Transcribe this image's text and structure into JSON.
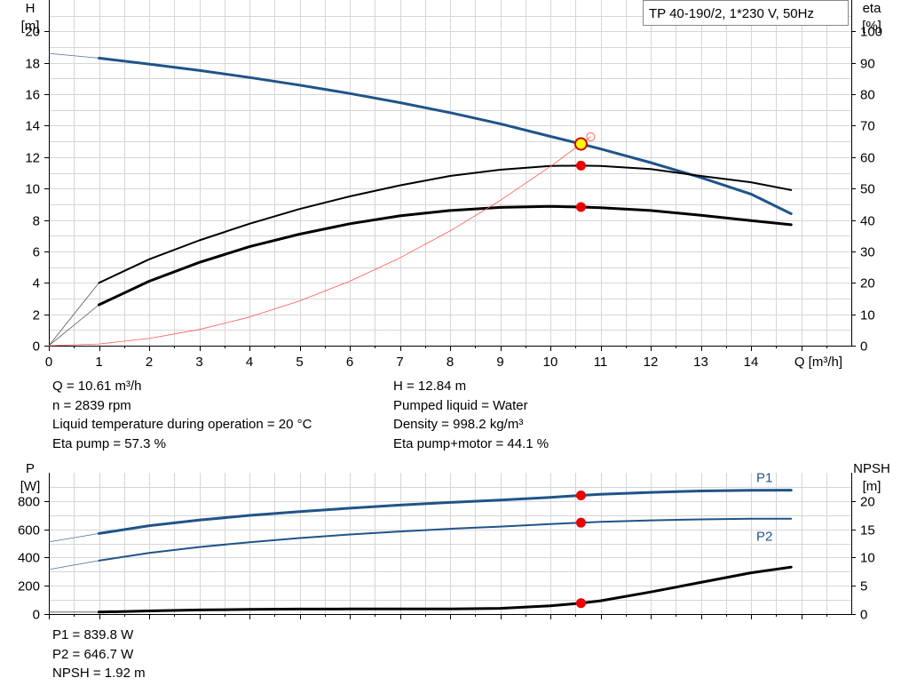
{
  "chart_data": [
    {
      "type": "line",
      "title": "TP 40-190/2, 1*230 V, 50Hz",
      "xlabel": "Q [m³/h]",
      "ylabel_left": [
        "H",
        "[m]"
      ],
      "ylabel_right": [
        "eta",
        "[%]"
      ],
      "xlim": [
        0,
        16
      ],
      "ylim_left": [
        0,
        22
      ],
      "ylim_right": [
        0,
        110
      ],
      "xticks": [
        "0",
        "1",
        "2",
        "3",
        "4",
        "5",
        "6",
        "7",
        "8",
        "9",
        "10",
        "11",
        "12",
        "13",
        "14"
      ],
      "yticks_left": [
        "0",
        "2",
        "4",
        "6",
        "8",
        "10",
        "12",
        "14",
        "16",
        "18",
        "20"
      ],
      "yticks_right": [
        "0",
        "10",
        "20",
        "30",
        "40",
        "50",
        "60",
        "70",
        "80",
        "90",
        "100"
      ],
      "grid": true,
      "series": [
        {
          "name": "",
          "axis": "left",
          "color": "#1f5489",
          "x": [
            1,
            2,
            3,
            4,
            5,
            6,
            7,
            8,
            9,
            10,
            10.61,
            11,
            12,
            13,
            14,
            14.8
          ],
          "y": [
            18.3,
            17.92,
            17.52,
            17.07,
            16.58,
            16.05,
            15.47,
            14.83,
            14.12,
            13.32,
            12.84,
            12.52,
            11.65,
            10.7,
            9.65,
            8.4
          ],
          "ext_x": [
            0,
            1
          ],
          "ext_y": [
            18.6,
            18.3
          ]
        },
        {
          "name": "",
          "axis": "right",
          "color": "#000000",
          "x": [
            1,
            2,
            3,
            4,
            5,
            6,
            7,
            8,
            9,
            10,
            10.61,
            11,
            12,
            13,
            14,
            14.8
          ],
          "y": [
            13,
            20.5,
            26.5,
            31.5,
            35.5,
            38.8,
            41.3,
            43,
            44,
            44.3,
            44.1,
            43.9,
            43,
            41.5,
            39.8,
            38.5
          ],
          "ext_x": [
            0,
            1
          ],
          "ext_y": [
            0,
            13
          ]
        },
        {
          "name": "",
          "axis": "right",
          "color": "#000000",
          "x": [
            1,
            2,
            3,
            4,
            5,
            6,
            7,
            8,
            9,
            10,
            10.61,
            11,
            12,
            13,
            14,
            14.8
          ],
          "y": [
            20,
            27.5,
            33.5,
            38.8,
            43.5,
            47.5,
            51,
            54,
            56,
            57.2,
            57.3,
            57.2,
            56.2,
            54,
            52,
            49.5
          ],
          "ext_x": [
            0,
            1
          ],
          "ext_y": [
            0,
            20
          ]
        },
        {
          "name": "",
          "axis": "left",
          "color": "#ff5555",
          "x": [
            0,
            1,
            2,
            3,
            4,
            5,
            6,
            7,
            8,
            9,
            10,
            10.61,
            10.8
          ],
          "y": [
            0,
            0.11,
            0.46,
            1.03,
            1.82,
            2.85,
            4.1,
            5.59,
            7.3,
            9.24,
            11.41,
            12.84,
            13.3
          ]
        }
      ],
      "points": [
        {
          "x": 10.61,
          "y": 12.84,
          "axis": "left",
          "color": "#ffff00",
          "stroke": "#cc0000",
          "marker": "duty"
        },
        {
          "x": 10.61,
          "y": 57.3,
          "axis": "right",
          "color": "#ee0000"
        },
        {
          "x": 10.61,
          "y": 44.1,
          "axis": "right",
          "color": "#ee0000"
        }
      ]
    },
    {
      "type": "line",
      "title": "",
      "xlabel": "",
      "ylabel_left": [
        "P",
        "[W]"
      ],
      "ylabel_right": [
        "NPSH",
        "[m]"
      ],
      "xlim": [
        0,
        16
      ],
      "ylim_left": [
        0,
        1000
      ],
      "ylim_right": [
        0,
        25
      ],
      "yticks_left": [
        "0",
        "200",
        "400",
        "600",
        "800"
      ],
      "yticks_right": [
        "0",
        "5",
        "10",
        "15",
        "20"
      ],
      "grid": true,
      "series": [
        {
          "name": "P1",
          "axis": "left",
          "color": "#1f5489",
          "x": [
            1,
            2,
            3,
            4,
            5,
            6,
            7,
            8,
            9,
            10,
            10.61,
            11,
            12,
            13,
            14,
            14.8
          ],
          "y": [
            570,
            625,
            665,
            698,
            725,
            749,
            771,
            790,
            807,
            826,
            839.8,
            847,
            861,
            871,
            876,
            877
          ],
          "ext_x": [
            0,
            1
          ],
          "ext_y": [
            510,
            570
          ]
        },
        {
          "name": "P2",
          "axis": "left",
          "color": "#1f5489",
          "x": [
            1,
            2,
            3,
            4,
            5,
            6,
            7,
            8,
            9,
            10,
            10.61,
            11,
            12,
            13,
            14,
            14.8
          ],
          "y": [
            378,
            432,
            474,
            508,
            538,
            563,
            584,
            603,
            619,
            637,
            646.7,
            652,
            663,
            670,
            674,
            675
          ],
          "ext_x": [
            0,
            1
          ],
          "ext_y": [
            315,
            378
          ]
        },
        {
          "name": "",
          "axis": "right",
          "color": "#000000",
          "x": [
            1,
            2,
            3,
            4,
            5,
            6,
            7,
            8,
            9,
            10,
            10.61,
            11,
            12,
            13,
            14,
            14.8
          ],
          "y": [
            0.35,
            0.55,
            0.72,
            0.82,
            0.88,
            0.9,
            0.9,
            0.9,
            1.0,
            1.45,
            1.92,
            2.35,
            3.9,
            5.6,
            7.3,
            8.3
          ],
          "ext_x": [
            0,
            1
          ],
          "ext_y": [
            0.35,
            0.35
          ]
        }
      ],
      "points": [
        {
          "x": 10.61,
          "y": 839.8,
          "axis": "left",
          "color": "#ee0000"
        },
        {
          "x": 10.61,
          "y": 646.7,
          "axis": "left",
          "color": "#ee0000"
        },
        {
          "x": 10.61,
          "y": 1.92,
          "axis": "right",
          "color": "#ee0000"
        }
      ]
    }
  ],
  "info": {
    "q": "Q = 10.61 m³/h",
    "n": "n = 2839 rpm",
    "temp": "Liquid temperature during operation = 20 °C",
    "eta_pump": "Eta pump = 57.3 %",
    "h": "H = 12.84 m",
    "liquid": "Pumped liquid = Water",
    "density": "Density = 998.2 kg/m³",
    "eta_pm": "Eta pump+motor = 44.1 %",
    "p1": "P1 = 839.8 W",
    "p2": "P2 = 646.7 W",
    "npsh": "NPSH = 1.92 m"
  }
}
